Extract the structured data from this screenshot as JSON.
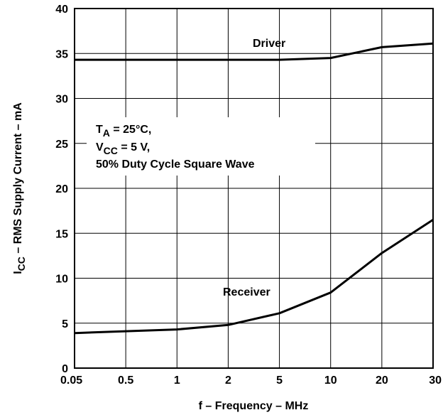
{
  "chart_data": {
    "type": "line",
    "title": "",
    "xlabel": "f – Frequency – MHz",
    "ylabel": {
      "prefix": "I",
      "sub": "CC",
      "rest": " – RMS Supply Current – mA"
    },
    "x_ticks": [
      "0.05",
      "0.5",
      "1",
      "2",
      "5",
      "10",
      "20",
      "30"
    ],
    "y_ticks": [
      "0",
      "5",
      "10",
      "15",
      "20",
      "25",
      "30",
      "35",
      "40"
    ],
    "ylim": [
      0,
      40
    ],
    "grid": true,
    "series": [
      {
        "name": "Driver",
        "x": [
          "0.05",
          "0.5",
          "1",
          "2",
          "5",
          "10",
          "20",
          "30"
        ],
        "values": [
          34.3,
          34.3,
          34.3,
          34.3,
          34.3,
          34.5,
          35.7,
          36.1
        ]
      },
      {
        "name": "Receiver",
        "x": [
          "0.05",
          "0.5",
          "1",
          "2",
          "5",
          "10",
          "20",
          "30"
        ],
        "values": [
          3.9,
          4.1,
          4.3,
          4.8,
          6.1,
          8.4,
          12.8,
          16.5
        ]
      }
    ],
    "conditions": {
      "line1": {
        "prefix": "T",
        "sub": "A",
        "rest": " = 25°C,"
      },
      "line2": {
        "prefix": "V",
        "sub": "CC",
        "rest": " = 5 V,"
      },
      "line3": "50% Duty Cycle Square Wave"
    }
  }
}
